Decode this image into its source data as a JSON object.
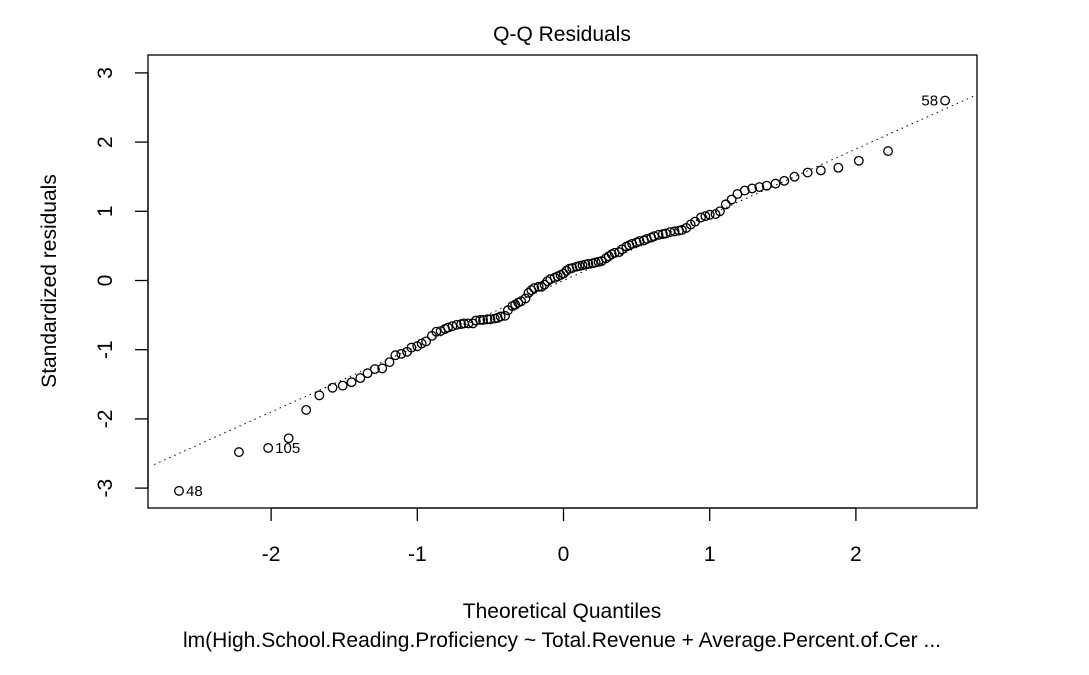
{
  "chart_data": {
    "type": "scatter",
    "title": "Q-Q Residuals",
    "xlabel": "Theoretical Quantiles",
    "ylabel": "Standardized residuals",
    "subtitle": "lm(High.School.Reading.Proficiency ~ Total.Revenue + Average.Percent.of.Cer ...",
    "xlim": [
      -2.8,
      2.85
    ],
    "ylim": [
      -3.25,
      3.25
    ],
    "x_ticks": [
      -2,
      -1,
      0,
      1,
      2
    ],
    "y_ticks": [
      -3,
      -2,
      -1,
      0,
      1,
      2,
      3
    ],
    "reference_line": {
      "style": "dotted",
      "intercept": 0.0,
      "slope": 0.95
    },
    "point_labels": [
      {
        "label": "58",
        "x": 2.61,
        "y": 2.6,
        "side": "left"
      },
      {
        "label": "105",
        "x": -2.02,
        "y": -2.42,
        "side": "right"
      },
      {
        "label": "48",
        "x": -2.63,
        "y": -3.04,
        "side": "right"
      }
    ],
    "points": [
      [
        -2.63,
        -3.04
      ],
      [
        -2.22,
        -2.48
      ],
      [
        -2.02,
        -2.42
      ],
      [
        -1.88,
        -2.28
      ],
      [
        -1.76,
        -1.87
      ],
      [
        -1.67,
        -1.66
      ],
      [
        -1.58,
        -1.55
      ],
      [
        -1.51,
        -1.52
      ],
      [
        -1.45,
        -1.47
      ],
      [
        -1.39,
        -1.41
      ],
      [
        -1.34,
        -1.34
      ],
      [
        -1.29,
        -1.28
      ],
      [
        -1.24,
        -1.27
      ],
      [
        -1.19,
        -1.18
      ],
      [
        -1.15,
        -1.08
      ],
      [
        -1.11,
        -1.06
      ],
      [
        -1.07,
        -1.03
      ],
      [
        -1.04,
        -0.97
      ],
      [
        -1.0,
        -0.95
      ],
      [
        -0.97,
        -0.91
      ],
      [
        -0.94,
        -0.88
      ],
      [
        -0.9,
        -0.8
      ],
      [
        -0.87,
        -0.74
      ],
      [
        -0.84,
        -0.73
      ],
      [
        -0.81,
        -0.7
      ],
      [
        -0.79,
        -0.68
      ],
      [
        -0.76,
        -0.66
      ],
      [
        -0.73,
        -0.64
      ],
      [
        -0.7,
        -0.63
      ],
      [
        -0.68,
        -0.62
      ],
      [
        -0.65,
        -0.62
      ],
      [
        -0.62,
        -0.62
      ],
      [
        -0.6,
        -0.58
      ],
      [
        -0.57,
        -0.57
      ],
      [
        -0.55,
        -0.57
      ],
      [
        -0.52,
        -0.56
      ],
      [
        -0.5,
        -0.56
      ],
      [
        -0.47,
        -0.55
      ],
      [
        -0.45,
        -0.54
      ],
      [
        -0.43,
        -0.52
      ],
      [
        -0.4,
        -0.51
      ],
      [
        -0.38,
        -0.43
      ],
      [
        -0.35,
        -0.37
      ],
      [
        -0.33,
        -0.35
      ],
      [
        -0.31,
        -0.32
      ],
      [
        -0.29,
        -0.3
      ],
      [
        -0.26,
        -0.26
      ],
      [
        -0.24,
        -0.18
      ],
      [
        -0.22,
        -0.14
      ],
      [
        -0.2,
        -0.11
      ],
      [
        -0.17,
        -0.09
      ],
      [
        -0.15,
        -0.09
      ],
      [
        -0.13,
        -0.06
      ],
      [
        -0.11,
        -0.01
      ],
      [
        -0.09,
        0.02
      ],
      [
        -0.06,
        0.04
      ],
      [
        -0.04,
        0.06
      ],
      [
        -0.02,
        0.08
      ],
      [
        0.0,
        0.1
      ],
      [
        0.02,
        0.14
      ],
      [
        0.04,
        0.17
      ],
      [
        0.06,
        0.18
      ],
      [
        0.09,
        0.2
      ],
      [
        0.11,
        0.21
      ],
      [
        0.13,
        0.22
      ],
      [
        0.15,
        0.23
      ],
      [
        0.17,
        0.24
      ],
      [
        0.2,
        0.25
      ],
      [
        0.22,
        0.26
      ],
      [
        0.24,
        0.27
      ],
      [
        0.26,
        0.28
      ],
      [
        0.29,
        0.32
      ],
      [
        0.31,
        0.35
      ],
      [
        0.33,
        0.38
      ],
      [
        0.35,
        0.4
      ],
      [
        0.38,
        0.41
      ],
      [
        0.4,
        0.45
      ],
      [
        0.43,
        0.49
      ],
      [
        0.45,
        0.51
      ],
      [
        0.47,
        0.53
      ],
      [
        0.5,
        0.55
      ],
      [
        0.52,
        0.57
      ],
      [
        0.55,
        0.58
      ],
      [
        0.57,
        0.6
      ],
      [
        0.6,
        0.62
      ],
      [
        0.62,
        0.64
      ],
      [
        0.65,
        0.66
      ],
      [
        0.68,
        0.67
      ],
      [
        0.7,
        0.68
      ],
      [
        0.73,
        0.7
      ],
      [
        0.76,
        0.71
      ],
      [
        0.79,
        0.72
      ],
      [
        0.81,
        0.73
      ],
      [
        0.84,
        0.76
      ],
      [
        0.87,
        0.81
      ],
      [
        0.9,
        0.85
      ],
      [
        0.94,
        0.91
      ],
      [
        0.97,
        0.93
      ],
      [
        1.0,
        0.95
      ],
      [
        1.04,
        0.96
      ],
      [
        1.07,
        1.0
      ],
      [
        1.11,
        1.1
      ],
      [
        1.15,
        1.17
      ],
      [
        1.19,
        1.25
      ],
      [
        1.24,
        1.3
      ],
      [
        1.29,
        1.33
      ],
      [
        1.34,
        1.35
      ],
      [
        1.39,
        1.37
      ],
      [
        1.45,
        1.4
      ],
      [
        1.51,
        1.44
      ],
      [
        1.58,
        1.5
      ],
      [
        1.67,
        1.56
      ],
      [
        1.76,
        1.59
      ],
      [
        1.88,
        1.63
      ],
      [
        2.02,
        1.73
      ],
      [
        2.22,
        1.87
      ],
      [
        2.61,
        2.6
      ]
    ]
  }
}
